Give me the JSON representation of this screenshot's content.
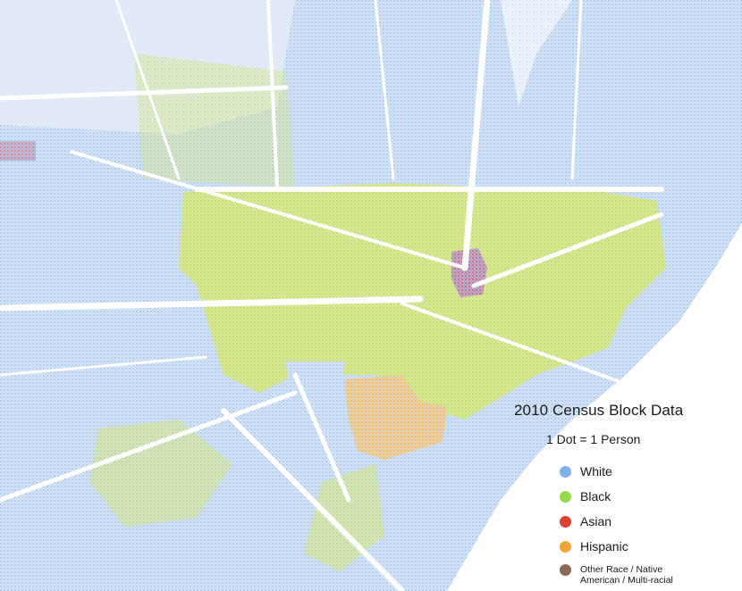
{
  "legend": {
    "title": "2010 Census Block Data",
    "subtitle": "1 Dot = 1 Person",
    "items": [
      {
        "label": "White",
        "color": "#7eb0ec"
      },
      {
        "label": "Black",
        "color": "#96d84a"
      },
      {
        "label": "Asian",
        "color": "#e04030"
      },
      {
        "label": "Hispanic",
        "color": "#f0a33a"
      },
      {
        "label": "Other Race / Native American / Multi-racial",
        "color": "#8a6a55"
      }
    ]
  },
  "map_colors": {
    "white_fill": "#c9dcf3",
    "black_fill": "#cfe37a",
    "asian_fill": "#d98a96",
    "hispanic_fill": "#edc07a",
    "road": "#ffffff",
    "water": "#ffffff"
  }
}
